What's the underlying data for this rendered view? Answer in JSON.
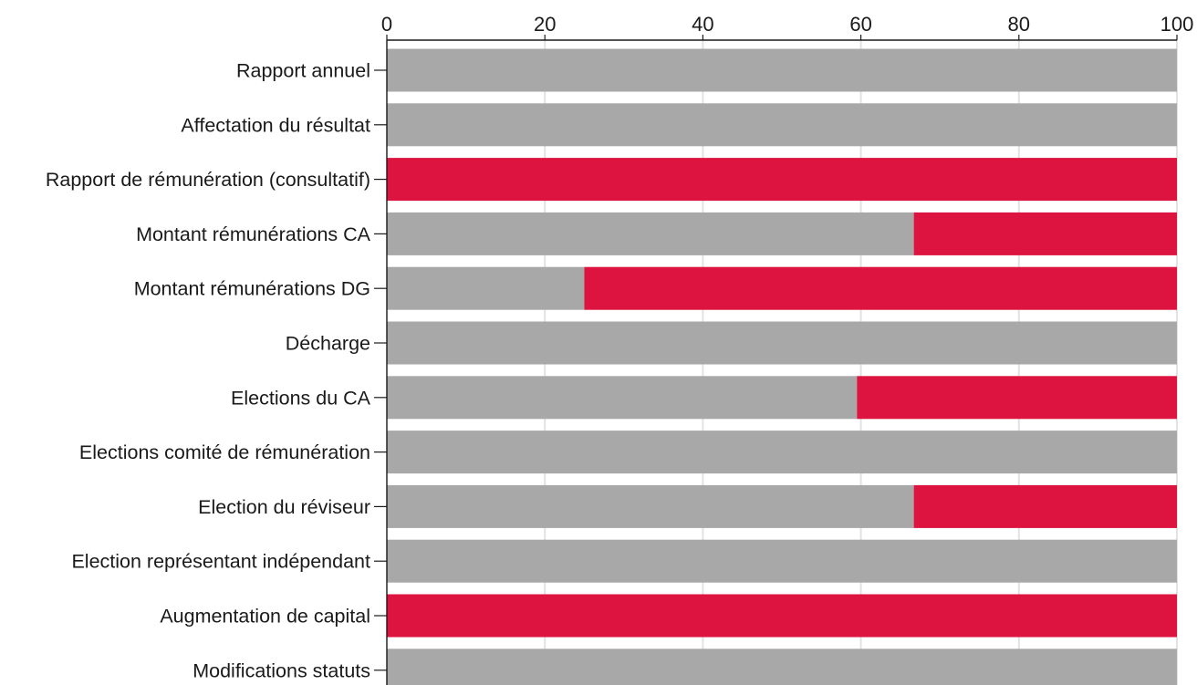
{
  "chart_data": {
    "type": "bar",
    "orientation": "horizontal",
    "stacked": true,
    "xlim": [
      0,
      100
    ],
    "x_ticks": [
      0,
      20,
      40,
      60,
      80,
      100
    ],
    "tick_labels": [
      "0",
      "20",
      "40",
      "60",
      "80",
      "100"
    ],
    "categories": [
      "Rapport annuel",
      "Affectation du résultat",
      "Rapport de rémunération (consultatif)",
      "Montant rémunérations CA",
      "Montant rémunérations DG",
      "Décharge",
      "Elections du CA",
      "Elections comité de rémunération",
      "Election du réviseur",
      "Election représentant indépendant",
      "Augmentation de capital",
      "Modifications statuts"
    ],
    "series": [
      {
        "color": "#a8a8a8",
        "values": [
          100,
          100,
          0,
          66.7,
          25,
          100,
          59.5,
          100,
          66.7,
          100,
          0,
          100
        ]
      },
      {
        "color": "#dc143f",
        "values": [
          0,
          0,
          100,
          33.3,
          75,
          0,
          40.5,
          0,
          33.3,
          0,
          100,
          0
        ]
      }
    ],
    "grid": true,
    "legend": "none"
  }
}
